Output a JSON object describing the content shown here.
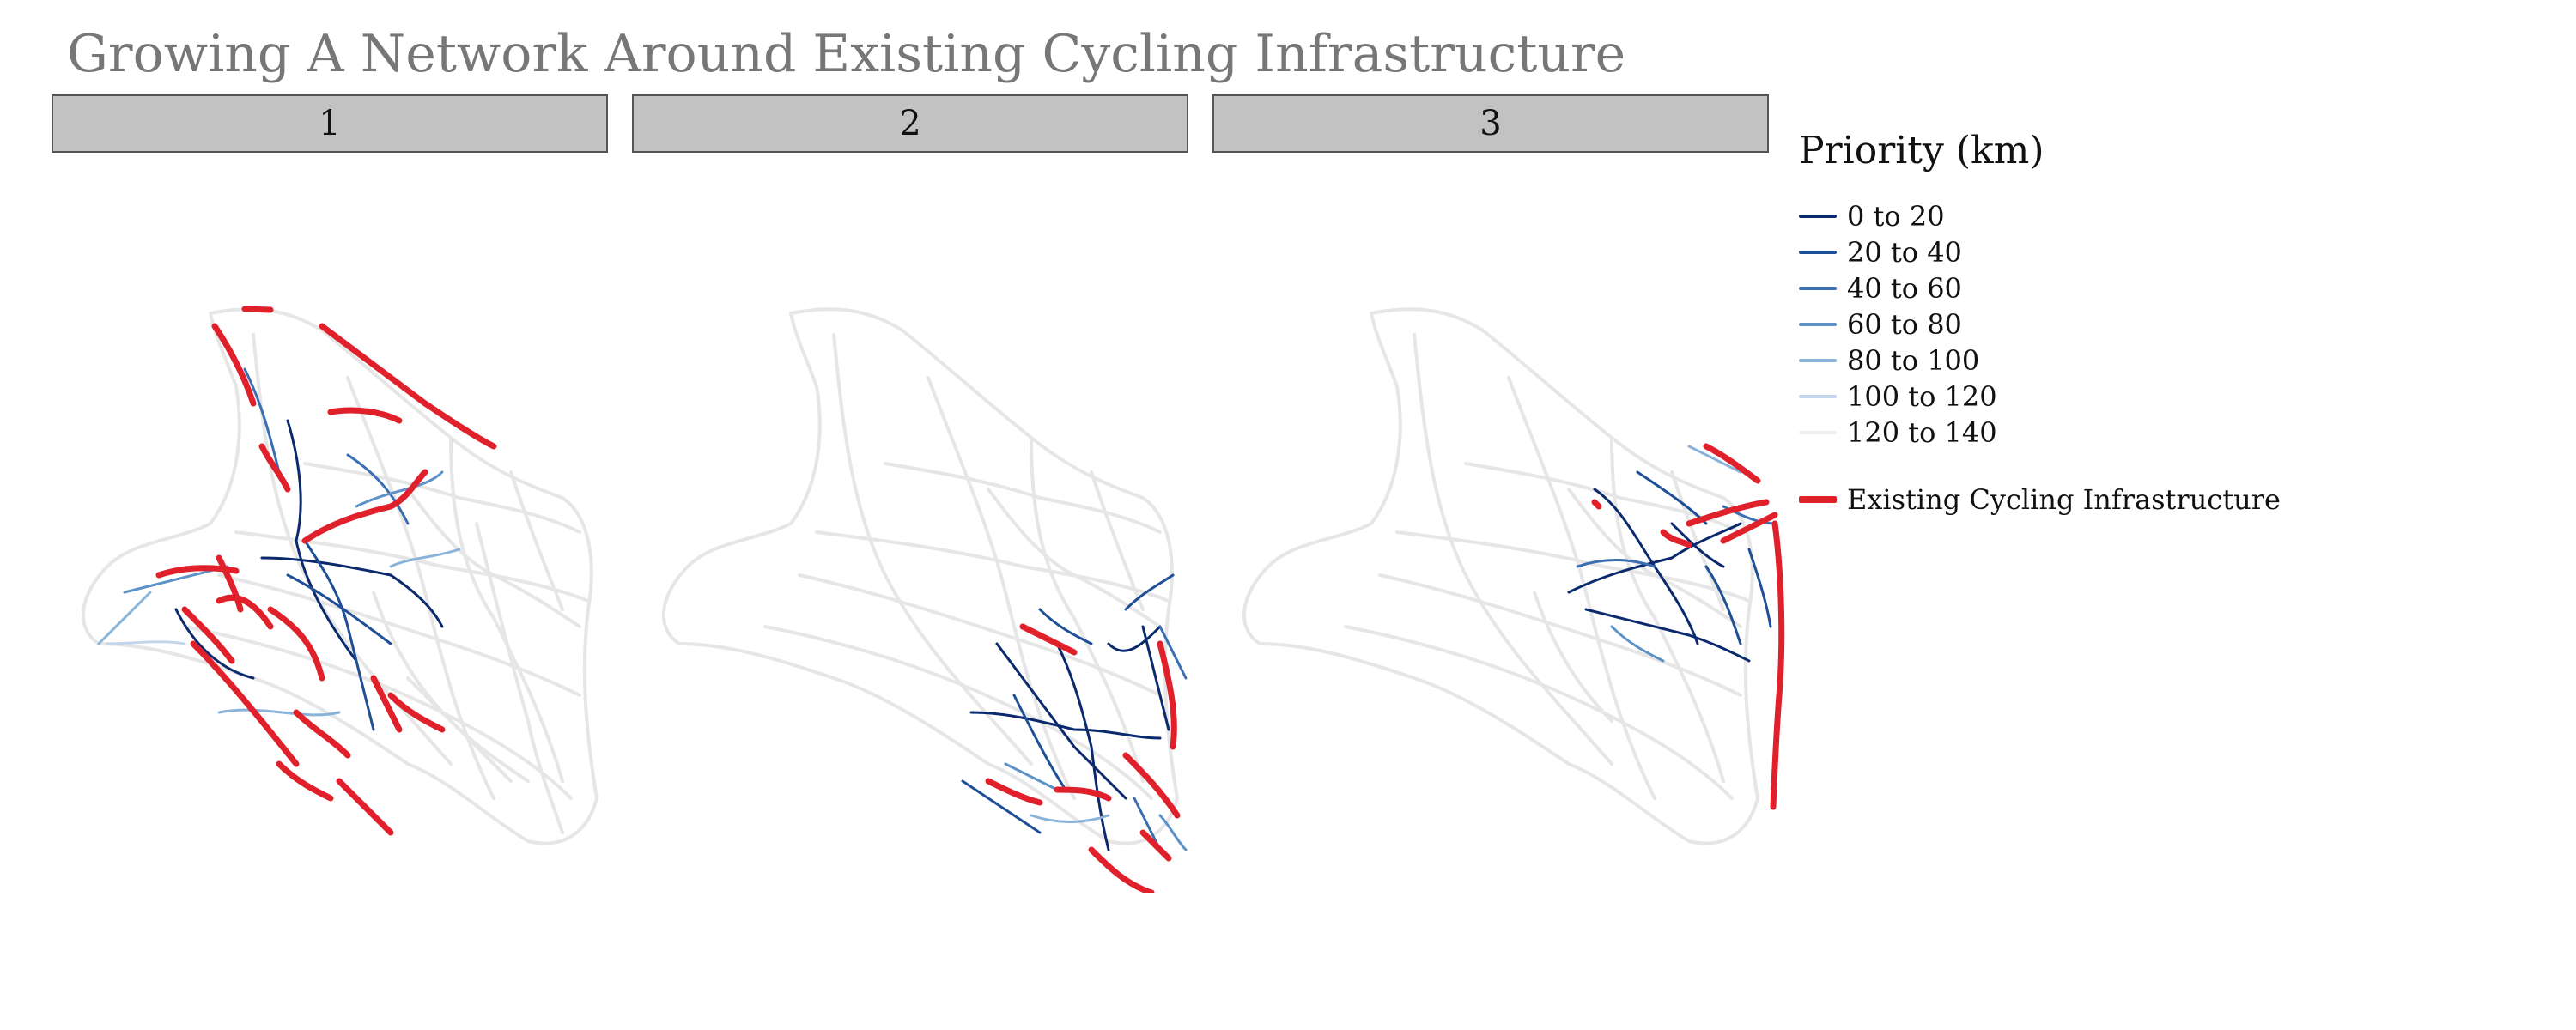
{
  "title": "Growing A Network Around Existing Cycling Infrastructure",
  "facets": [
    "1",
    "2",
    "3"
  ],
  "legend": {
    "title": "Priority (km)",
    "items": [
      {
        "label": "0 to 20",
        "color": "#0b2a6e"
      },
      {
        "label": "20 to 40",
        "color": "#1f4f96"
      },
      {
        "label": "40 to 60",
        "color": "#3a70b3"
      },
      {
        "label": "60 to 80",
        "color": "#5c92c8"
      },
      {
        "label": "80 to 100",
        "color": "#8ab3d9"
      },
      {
        "label": "100 to 120",
        "color": "#c3d5ea"
      },
      {
        "label": "120 to 140",
        "color": "#eeeeee"
      }
    ],
    "infra": {
      "label": "Existing Cycling Infrastructure",
      "color": "#e0202a"
    }
  },
  "colors": {
    "base_network": "#e6e6e6",
    "infrastructure": "#e0202a",
    "header_fill": "#c2c2c2",
    "title": "#777777"
  }
}
